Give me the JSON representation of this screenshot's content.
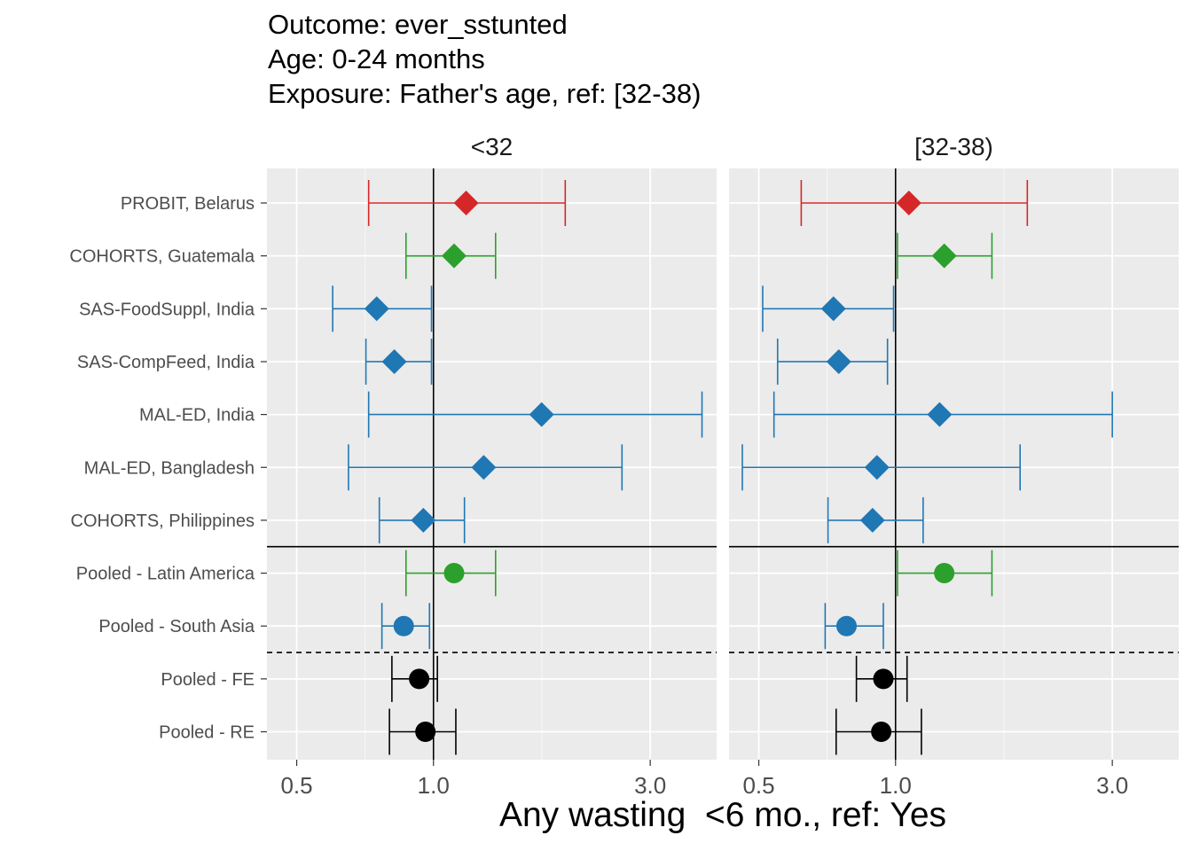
{
  "title_lines": [
    "Outcome: ever_sstunted",
    "Age: 0-24 months",
    "Exposure: Father's age, ref: [32-38)"
  ],
  "chart_data": {
    "type": "forest",
    "xlabel": "Any wasting  <6 mo., ref: Yes",
    "x_scale": "log",
    "xlim": [
      0.43,
      4.2
    ],
    "x_ticks": [
      0.5,
      1.0,
      3.0
    ],
    "x_tick_labels": [
      "0.5",
      "1.0",
      "3.0"
    ],
    "reference_line": 1.0,
    "grid": true,
    "rows": [
      "PROBIT, Belarus",
      "COHORTS, Guatemala",
      "SAS-FoodSuppl, India",
      "SAS-CompFeed, India",
      "MAL-ED, India",
      "MAL-ED, Bangladesh",
      "COHORTS, Philippines",
      "Pooled - Latin America",
      "Pooled - South Asia",
      "Pooled - FE",
      "Pooled - RE"
    ],
    "row_colors": [
      "#d62728",
      "#2ca02c",
      "#1f77b4",
      "#1f77b4",
      "#1f77b4",
      "#1f77b4",
      "#1f77b4",
      "#2ca02c",
      "#1f77b4",
      "#000000",
      "#000000"
    ],
    "row_shapes": [
      "diamond",
      "diamond",
      "diamond",
      "diamond",
      "diamond",
      "diamond",
      "diamond",
      "circle",
      "circle",
      "circle",
      "circle"
    ],
    "panels": [
      {
        "label": "<32",
        "estimates": [
          {
            "est": 1.18,
            "lo": 0.72,
            "hi": 1.95
          },
          {
            "est": 1.11,
            "lo": 0.87,
            "hi": 1.37
          },
          {
            "est": 0.75,
            "lo": 0.6,
            "hi": 0.99
          },
          {
            "est": 0.82,
            "lo": 0.71,
            "hi": 0.99
          },
          {
            "est": 1.73,
            "lo": 0.72,
            "hi": 3.9
          },
          {
            "est": 1.29,
            "lo": 0.65,
            "hi": 2.6
          },
          {
            "est": 0.95,
            "lo": 0.76,
            "hi": 1.17
          },
          {
            "est": 1.11,
            "lo": 0.87,
            "hi": 1.37
          },
          {
            "est": 0.86,
            "lo": 0.77,
            "hi": 0.98
          },
          {
            "est": 0.93,
            "lo": 0.81,
            "hi": 1.02
          },
          {
            "est": 0.96,
            "lo": 0.8,
            "hi": 1.12
          }
        ]
      },
      {
        "label": "[32-38)",
        "estimates": [
          {
            "est": 1.07,
            "lo": 0.62,
            "hi": 1.95
          },
          {
            "est": 1.28,
            "lo": 1.01,
            "hi": 1.63
          },
          {
            "est": 0.73,
            "lo": 0.51,
            "hi": 0.99
          },
          {
            "est": 0.75,
            "lo": 0.55,
            "hi": 0.96
          },
          {
            "est": 1.25,
            "lo": 0.54,
            "hi": 3.0
          },
          {
            "est": 0.91,
            "lo": 0.46,
            "hi": 1.88
          },
          {
            "est": 0.89,
            "lo": 0.71,
            "hi": 1.15
          },
          {
            "est": 1.28,
            "lo": 1.01,
            "hi": 1.63
          },
          {
            "est": 0.78,
            "lo": 0.7,
            "hi": 0.94
          },
          {
            "est": 0.94,
            "lo": 0.82,
            "hi": 1.06
          },
          {
            "est": 0.93,
            "lo": 0.74,
            "hi": 1.14
          }
        ]
      }
    ]
  }
}
